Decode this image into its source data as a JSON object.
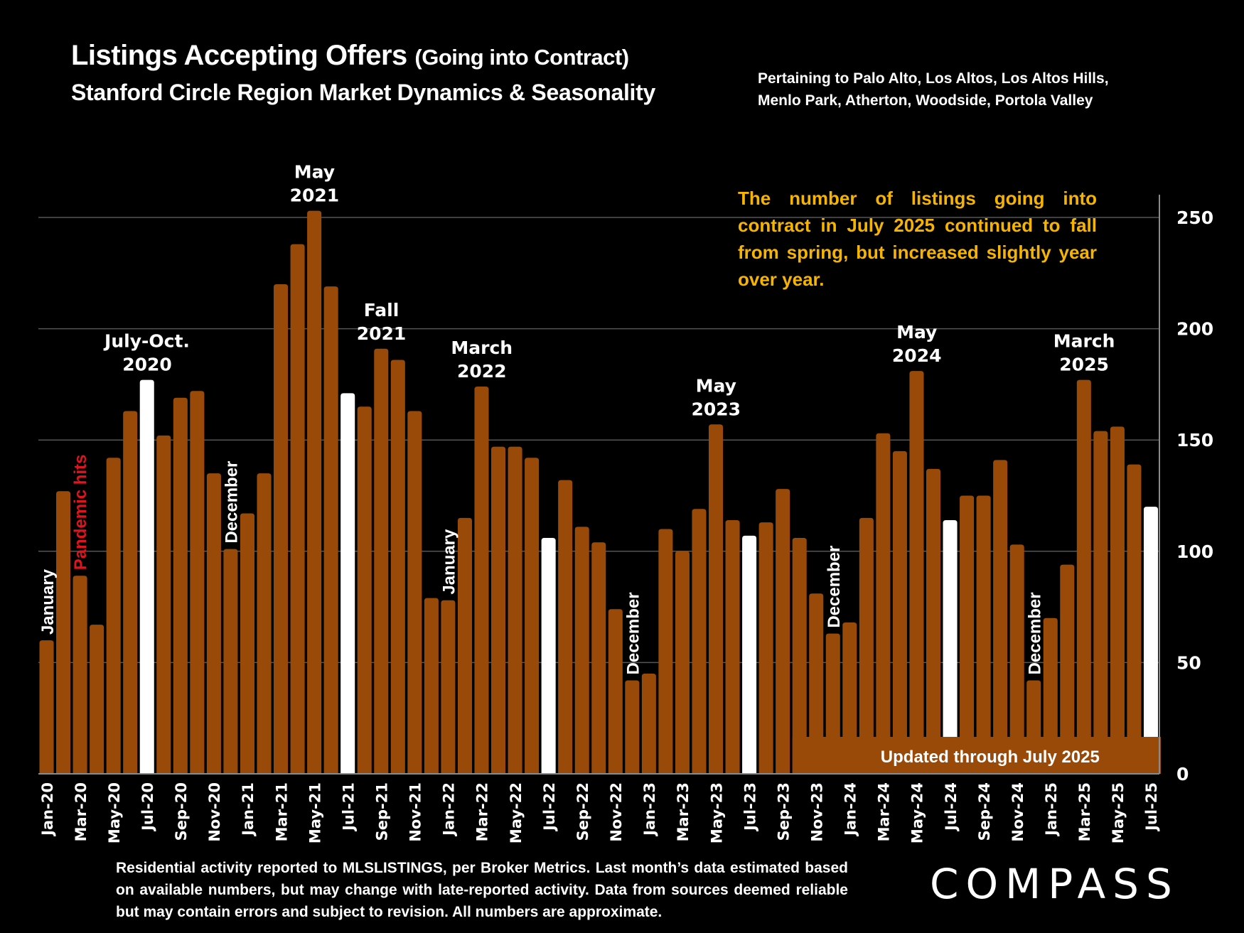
{
  "header": {
    "title_main": "Listings Accepting Offers",
    "title_paren": "(Going into Contract)",
    "subtitle": "Stanford Circle Region Market Dynamics & Seasonality",
    "region_line1": "Pertaining to Palo Alto, Los Altos, Los Altos Hills,",
    "region_line2": "Menlo Park, Atherton, Woodside, Portola Valley"
  },
  "annotation": "The number of listings going into contract in July 2025 continued to fall from spring, but increased slightly year over year.",
  "updated_label": "Updated through July 2025",
  "footer": "Residential activity reported to MLSLISTINGS, per Broker Metrics. Last month’s data estimated based on available numbers, but may change with late-reported activity. Data from sources deemed reliable but may contain errors and subject to revision. All numbers are approximate.",
  "logo": "COMPASS",
  "colors": {
    "bar": "#9a4a08",
    "highlight": "#ffffff",
    "annotation": "#f5b400",
    "pandemic": "#e0141e",
    "grid": "#555555"
  },
  "chart_data": {
    "type": "bar",
    "title": "Listings Accepting Offers (Going into Contract)",
    "subtitle": "Stanford Circle Region Market Dynamics & Seasonality",
    "xlabel": "",
    "ylabel": "",
    "ylim": [
      0,
      250
    ],
    "yticks": [
      0,
      50,
      100,
      150,
      200,
      250
    ],
    "y_axis_position": "right",
    "grid": true,
    "categories": [
      "Jan-20",
      "Feb-20",
      "Mar-20",
      "Apr-20",
      "May-20",
      "Jun-20",
      "Jul-20",
      "Aug-20",
      "Sep-20",
      "Oct-20",
      "Nov-20",
      "Dec-20",
      "Jan-21",
      "Feb-21",
      "Mar-21",
      "Apr-21",
      "May-21",
      "Jun-21",
      "Jul-21",
      "Aug-21",
      "Sep-21",
      "Oct-21",
      "Nov-21",
      "Dec-21",
      "Jan-22",
      "Feb-22",
      "Mar-22",
      "Apr-22",
      "May-22",
      "Jun-22",
      "Jul-22",
      "Aug-22",
      "Sep-22",
      "Oct-22",
      "Nov-22",
      "Dec-22",
      "Jan-23",
      "Feb-23",
      "Mar-23",
      "Apr-23",
      "May-23",
      "Jun-23",
      "Jul-23",
      "Aug-23",
      "Sep-23",
      "Oct-23",
      "Nov-23",
      "Dec-23",
      "Jan-24",
      "Feb-24",
      "Mar-24",
      "Apr-24",
      "May-24",
      "Jun-24",
      "Jul-24",
      "Aug-24",
      "Sep-24",
      "Oct-24",
      "Nov-24",
      "Dec-24",
      "Jan-25",
      "Feb-25",
      "Mar-25",
      "Apr-25",
      "May-25",
      "Jun-25",
      "Jul-25"
    ],
    "values": [
      60,
      127,
      89,
      67,
      142,
      163,
      177,
      152,
      169,
      172,
      135,
      101,
      117,
      135,
      220,
      238,
      253,
      219,
      171,
      165,
      191,
      186,
      163,
      79,
      78,
      115,
      174,
      147,
      147,
      142,
      106,
      132,
      111,
      104,
      74,
      42,
      45,
      110,
      100,
      119,
      157,
      114,
      107,
      113,
      128,
      106,
      81,
      63,
      68,
      115,
      153,
      145,
      181,
      137,
      114,
      125,
      125,
      141,
      103,
      42,
      70,
      94,
      177,
      154,
      156,
      139,
      120
    ],
    "highlighted_categories": [
      "Jul-20",
      "Jul-21",
      "Jul-22",
      "Jul-23",
      "Jul-24",
      "Jul-25"
    ],
    "tick_labels_every": 2,
    "annotations": [
      {
        "text": "January",
        "at": "Jan-20",
        "rotated": true
      },
      {
        "text": "Pandemic hits",
        "at": "Mar-20",
        "rotated": true,
        "color": "red"
      },
      {
        "text": "July-Oct. 2020",
        "at": "Jul-20"
      },
      {
        "text": "December",
        "at": "Dec-20",
        "rotated": true
      },
      {
        "text": "May 2021",
        "at": "May-21"
      },
      {
        "text": "Fall 2021",
        "at": "Sep-21"
      },
      {
        "text": "January",
        "at": "Jan-22",
        "rotated": true
      },
      {
        "text": "March 2022",
        "at": "Mar-22"
      },
      {
        "text": "December",
        "at": "Dec-22",
        "rotated": true
      },
      {
        "text": "May 2023",
        "at": "May-23"
      },
      {
        "text": "December",
        "at": "Dec-23",
        "rotated": true
      },
      {
        "text": "May 2024",
        "at": "May-24"
      },
      {
        "text": "December",
        "at": "Dec-24",
        "rotated": true
      },
      {
        "text": "March 2025",
        "at": "Mar-25"
      }
    ]
  }
}
